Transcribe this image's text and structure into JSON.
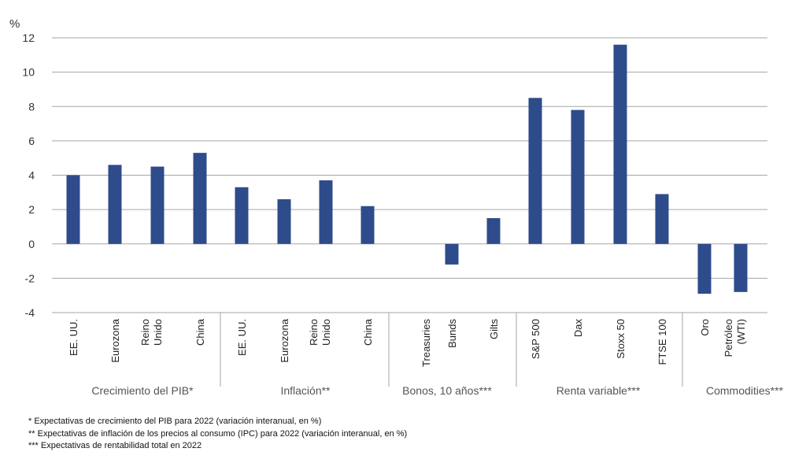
{
  "chart_data": {
    "type": "bar",
    "ylabel": "%",
    "ylim": [
      -4,
      12
    ],
    "yticks": [
      -4,
      -2,
      0,
      2,
      4,
      6,
      8,
      10,
      12
    ],
    "grid": true,
    "bar_color": "#2e4b8b",
    "categories": [
      {
        "label": "EE. UU.",
        "value": 4.0
      },
      {
        "label": "Eurozona",
        "value": 4.6
      },
      {
        "label": "Reino\nUnido",
        "value": 4.5
      },
      {
        "label": "China",
        "value": 5.3
      },
      {
        "label": "EE. UU.",
        "value": 3.3
      },
      {
        "label": "Eurozona",
        "value": 2.6
      },
      {
        "label": "Reino\nUnido",
        "value": 3.7
      },
      {
        "label": "China",
        "value": 2.2
      },
      {
        "label": "Treasuries",
        "value": 0
      },
      {
        "label": "Bunds",
        "value": -1.2
      },
      {
        "label": "Gilts",
        "value": 1.5
      },
      {
        "label": "S&P 500",
        "value": 8.5
      },
      {
        "label": "Dax",
        "value": 7.8
      },
      {
        "label": "Stoxx 50",
        "value": 11.6
      },
      {
        "label": "FTSE 100",
        "value": 2.9
      },
      {
        "label": "Oro",
        "value": -2.9
      },
      {
        "label": "Petróleo\n(WTI)",
        "value": -2.8
      }
    ],
    "groups": [
      {
        "label": "Crecimiento del PIB*",
        "start": 0,
        "end": 3
      },
      {
        "label": "Inflación**",
        "start": 4,
        "end": 7
      },
      {
        "label": "Bonos, 10 años***",
        "start": 8,
        "end": 10
      },
      {
        "label": "Renta variable***",
        "start": 11,
        "end": 14
      },
      {
        "label": "Commodities***",
        "start": 15,
        "end": 16
      }
    ]
  },
  "notes": [
    "* Expectativas de crecimiento del PIB para 2022 (variación interanual, en %)",
    "** Expectativas de inflación de los precios al consumo (IPC) para 2022 (variación interanual, en %)",
    "*** Expectativas de rentabilidad total en 2022"
  ]
}
